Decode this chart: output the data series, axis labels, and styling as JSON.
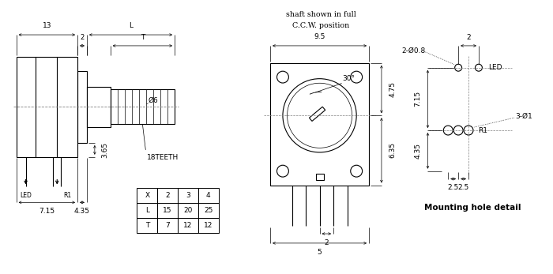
{
  "bg_color": "#ffffff",
  "line_color": "#000000",
  "table_data": [
    [
      "X",
      "2",
      "3",
      "4"
    ],
    [
      "L",
      "15",
      "20",
      "25"
    ],
    [
      "T",
      "7",
      "12",
      "12"
    ]
  ]
}
